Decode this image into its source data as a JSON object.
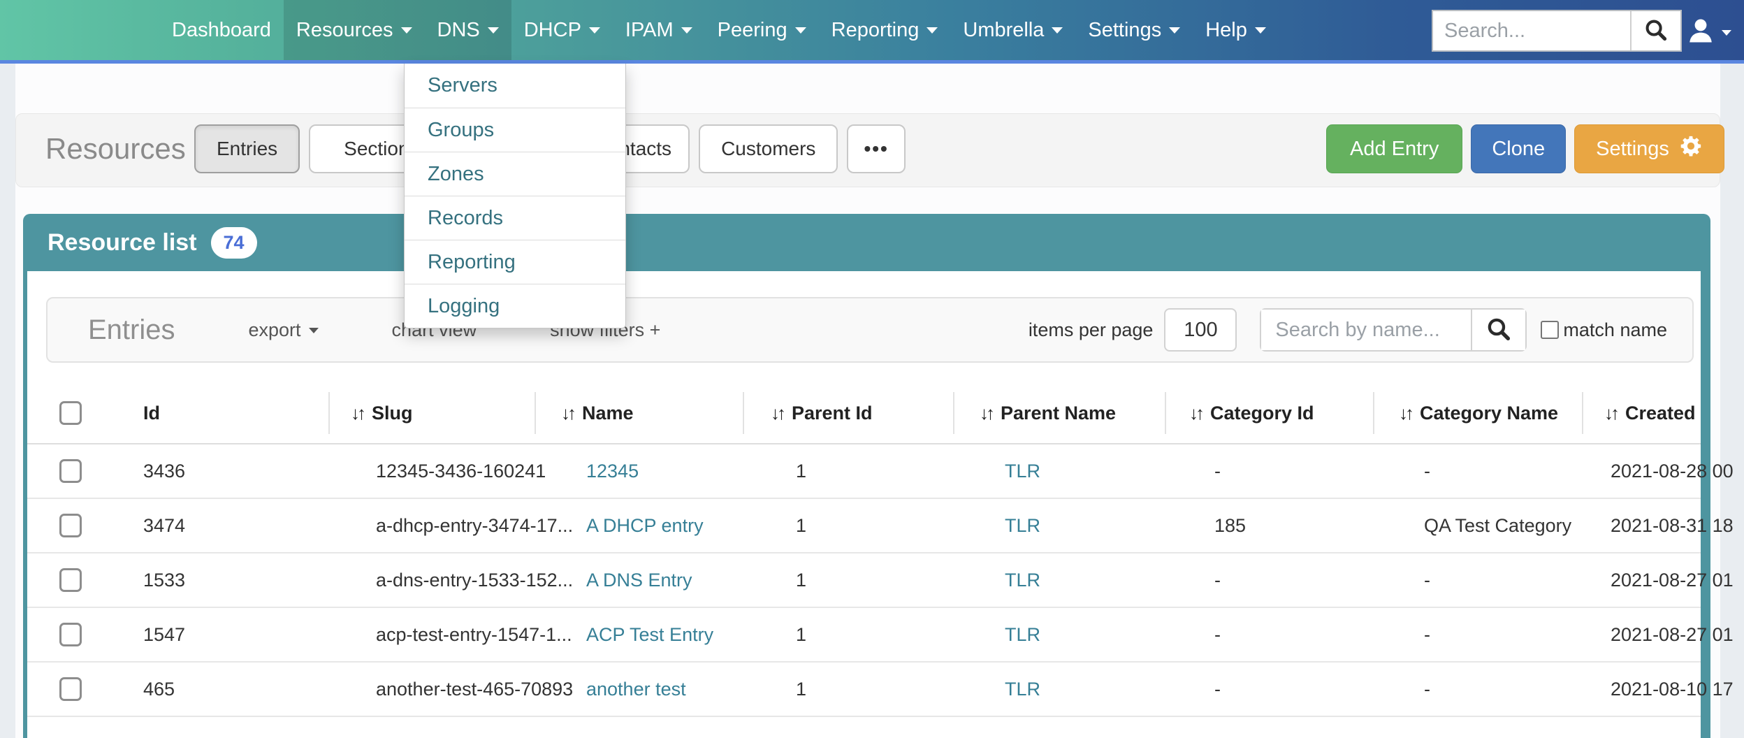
{
  "colors": {
    "navbar_gradient_start": "#61c5a6",
    "navbar_gradient_end": "#2d4f91",
    "navbar_underline": "#5a86e0",
    "accent_teal": "#4e95a0",
    "link_teal": "#367f96",
    "menu_link_teal": "#35717f",
    "button_green": "#65b15f",
    "button_blue": "#4376ba",
    "button_orange": "#e9a643",
    "badge_text_blue": "#4a6ed6"
  },
  "navbar": {
    "items": [
      {
        "label": "Dashboard",
        "caret": false,
        "highlight": false
      },
      {
        "label": "Resources",
        "caret": true,
        "highlight": true
      },
      {
        "label": "DNS",
        "caret": true,
        "highlight": true
      },
      {
        "label": "DHCP",
        "caret": true,
        "highlight": false
      },
      {
        "label": "IPAM",
        "caret": true,
        "highlight": false
      },
      {
        "label": "Peering",
        "caret": true,
        "highlight": false
      },
      {
        "label": "Reporting",
        "caret": true,
        "highlight": false
      },
      {
        "label": "Umbrella",
        "caret": true,
        "highlight": false
      },
      {
        "label": "Settings",
        "caret": true,
        "highlight": false
      },
      {
        "label": "Help",
        "caret": true,
        "highlight": false
      }
    ],
    "search_placeholder": "Search...",
    "search_icon": "magnifier-icon",
    "user_icon": "person-icon"
  },
  "dns_menu": {
    "open_under": "DNS",
    "items": [
      "Servers",
      "Groups",
      "Zones",
      "Records",
      "Reporting",
      "Logging"
    ]
  },
  "page_header": {
    "title": "Resources",
    "tabs": [
      {
        "label": "Entries",
        "active": true,
        "pad": "pad-md",
        "offset": false
      },
      {
        "label": "Sections",
        "active": false,
        "pad": "pad-lg",
        "offset": false
      },
      {
        "label": "Contacts",
        "active": false,
        "pad": "pad-sm",
        "offset": true
      },
      {
        "label": "Customers",
        "active": false,
        "pad": "pad-md",
        "offset": false
      },
      {
        "label": "•••",
        "active": false,
        "pad": "more",
        "offset": false
      }
    ],
    "actions": [
      {
        "label": "Add Entry",
        "style": "green",
        "icon": null
      },
      {
        "label": "Clone",
        "style": "blue",
        "icon": null
      },
      {
        "label": "Settings",
        "style": "orange",
        "icon": "gear-icon"
      }
    ]
  },
  "panel": {
    "title": "Resource list",
    "badge_count": "74"
  },
  "toolbar": {
    "heading": "Entries",
    "links": [
      {
        "label": "export",
        "caret": true
      },
      {
        "label": "chart view",
        "caret": false
      },
      {
        "label": "show filters +",
        "caret": false
      }
    ],
    "items_per_page_label": "items per page",
    "items_per_page_value": "100",
    "search_placeholder": "Search by name...",
    "search_icon": "magnifier-icon",
    "match_name_label": "match name",
    "match_name_checked": false
  },
  "table": {
    "columns": [
      {
        "label": "",
        "sortable": false
      },
      {
        "label": "Id",
        "sortable": false
      },
      {
        "label": "Slug",
        "sortable": true
      },
      {
        "label": "Name",
        "sortable": true
      },
      {
        "label": "Parent Id",
        "sortable": true
      },
      {
        "label": "Parent Name",
        "sortable": true
      },
      {
        "label": "Category Id",
        "sortable": true
      },
      {
        "label": "Category Name",
        "sortable": true
      },
      {
        "label": "Created",
        "sortable": true
      }
    ],
    "rows": [
      {
        "id": "3436",
        "slug": "12345-3436-160241",
        "name": "12345",
        "parent_id": "1",
        "parent_name": "TLR",
        "category_id": "-",
        "category_name": "-",
        "created": "2021-08-28 00"
      },
      {
        "id": "3474",
        "slug": "a-dhcp-entry-3474-17...",
        "name": "A DHCP entry",
        "parent_id": "1",
        "parent_name": "TLR",
        "category_id": "185",
        "category_name": "QA Test Category",
        "created": "2021-08-31 18"
      },
      {
        "id": "1533",
        "slug": "a-dns-entry-1533-152...",
        "name": "A DNS Entry",
        "parent_id": "1",
        "parent_name": "TLR",
        "category_id": "-",
        "category_name": "-",
        "created": "2021-08-27 01"
      },
      {
        "id": "1547",
        "slug": "acp-test-entry-1547-1...",
        "name": "ACP Test Entry",
        "parent_id": "1",
        "parent_name": "TLR",
        "category_id": "-",
        "category_name": "-",
        "created": "2021-08-27 01"
      },
      {
        "id": "465",
        "slug": "another-test-465-70893",
        "name": "another test",
        "parent_id": "1",
        "parent_name": "TLR",
        "category_id": "-",
        "category_name": "-",
        "created": "2021-08-10 17"
      }
    ]
  }
}
